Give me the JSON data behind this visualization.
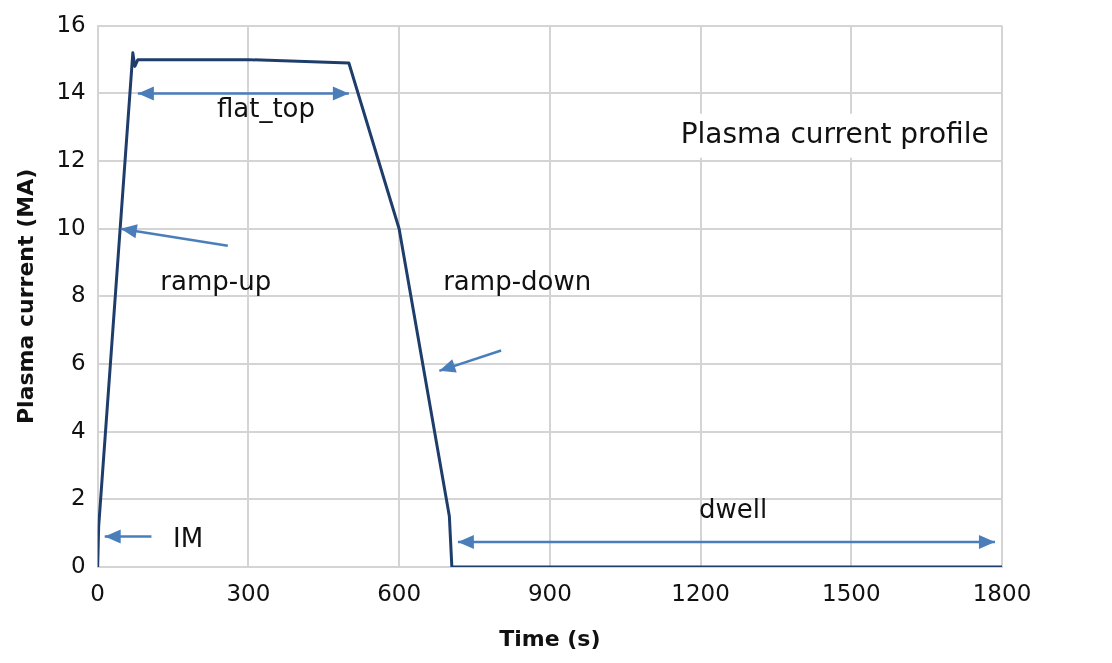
{
  "chart_data": {
    "type": "line",
    "title": "Plasma current profile",
    "xlabel": "Time (s)",
    "ylabel": "Plasma current (MA)",
    "series": [
      {
        "color": "#1f3d6b",
        "x": [
          0,
          2,
          70,
          74,
          80,
          300,
          500,
          600,
          700,
          705,
          1800
        ],
        "values": [
          0,
          1.2,
          15.2,
          14.8,
          15.0,
          15.0,
          14.9,
          10,
          1.5,
          0,
          0
        ]
      }
    ],
    "xlim": [
      0,
      1800
    ],
    "xticks": [
      0,
      300,
      600,
      900,
      1200,
      1500,
      1800
    ],
    "ylim": [
      0,
      16
    ],
    "yticks": [
      0,
      2,
      4,
      6,
      8,
      10,
      12,
      14,
      16
    ],
    "grid": true,
    "marker": "none",
    "line_style": "solid",
    "annotations": [
      "flat_top",
      {
        "text": "ramp-up",
        "x": 46,
        "y": 10
      },
      "ramp-down",
      "IM",
      "dwell"
    ]
  }
}
